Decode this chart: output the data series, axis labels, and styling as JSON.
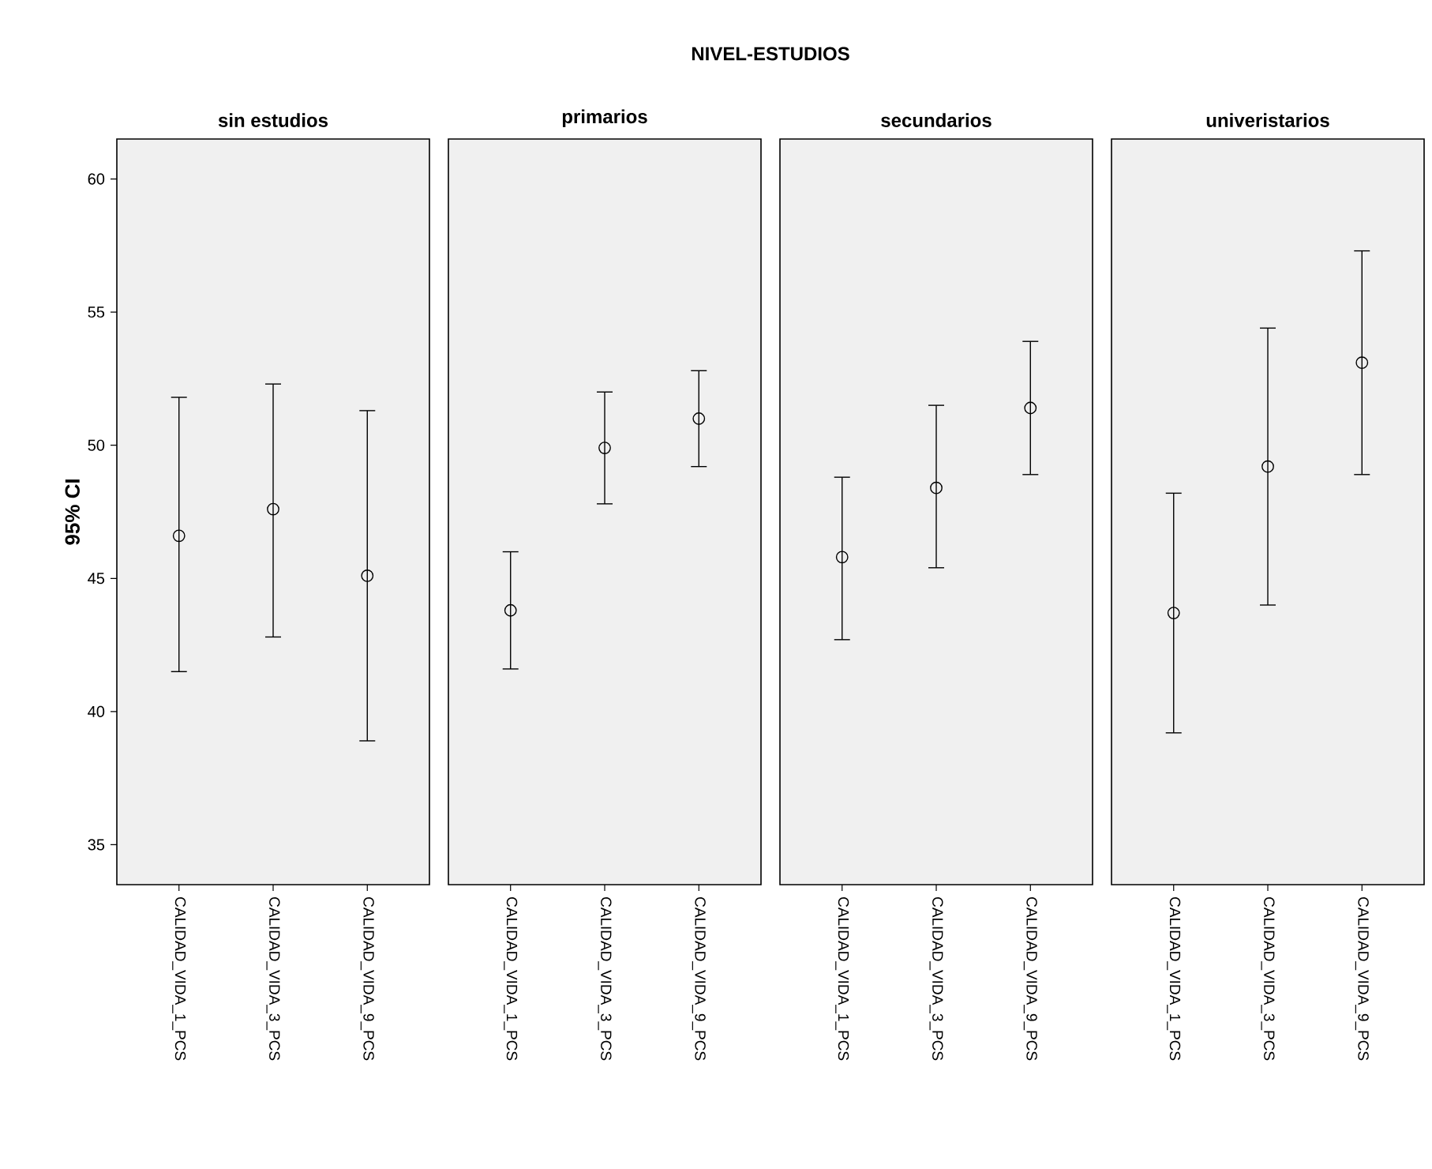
{
  "chart_data": [
    {
      "type": "scatter",
      "title": "sin estudios",
      "annotations": [
        "NIVEL-ESTUDIOS"
      ],
      "ylabel": "95% CI",
      "categories": [
        "CALIDAD_VIDA_1_PCS",
        "CALIDAD_VIDA_3_PCS",
        "CALIDAD_VIDA_9_PCS"
      ],
      "values": [
        46.6,
        47.6,
        45.1
      ],
      "errors": [
        [
          41.5,
          51.8
        ],
        [
          42.8,
          52.3
        ],
        [
          38.9,
          51.3
        ]
      ],
      "ylim": [
        33.5,
        61.5
      ],
      "yticks": [
        35,
        40,
        45,
        50,
        55,
        60
      ],
      "marker": "circle",
      "color": "#000000"
    },
    {
      "type": "scatter",
      "title": "primarios",
      "categories": [
        "CALIDAD_VIDA_1_PCS",
        "CALIDAD_VIDA_3_PCS",
        "CALIDAD_VIDA_9_PCS"
      ],
      "values": [
        43.8,
        49.9,
        51.0
      ],
      "errors": [
        [
          41.6,
          46.0
        ],
        [
          47.8,
          52.0
        ],
        [
          49.2,
          52.8
        ]
      ],
      "ylim": [
        33.5,
        61.5
      ],
      "tick_labels": "x",
      "marker": "circle",
      "color": "#000000"
    },
    {
      "type": "scatter",
      "title": "secundarios",
      "categories": [
        "CALIDAD_VIDA_1_PCS",
        "CALIDAD_VIDA_3_PCS",
        "CALIDAD_VIDA_9_PCS"
      ],
      "values": [
        45.8,
        48.4,
        51.4
      ],
      "errors": [
        [
          42.7,
          48.8
        ],
        [
          45.4,
          51.5
        ],
        [
          48.9,
          53.9
        ]
      ],
      "ylim": [
        33.5,
        61.5
      ],
      "tick_labels": "x",
      "marker": "circle",
      "color": "#000000"
    },
    {
      "type": "scatter",
      "title": "univeristarios",
      "categories": [
        "CALIDAD_VIDA_1_PCS",
        "CALIDAD_VIDA_3_PCS",
        "CALIDAD_VIDA_9_PCS"
      ],
      "values": [
        43.7,
        49.2,
        53.1
      ],
      "errors": [
        [
          39.2,
          48.2
        ],
        [
          44.0,
          54.4
        ],
        [
          48.9,
          57.3
        ]
      ],
      "ylim": [
        33.5,
        61.5
      ],
      "tick_labels": "x",
      "marker": "circle",
      "color": "#000000"
    }
  ]
}
